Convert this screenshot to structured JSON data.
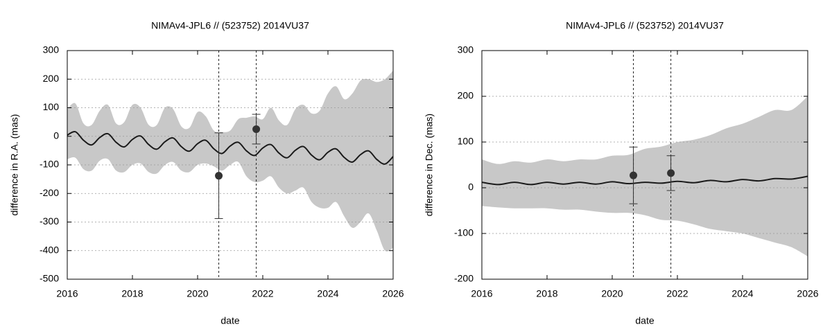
{
  "chart_data": [
    {
      "type": "line",
      "title": "NIMAv4-JPL6 // (523752) 2014VU37",
      "x_label": "date",
      "y_label": "difference in R.A. (mas)",
      "xlim": [
        2016,
        2026
      ],
      "xticks": [
        2016,
        2018,
        2020,
        2022,
        2024,
        2026
      ],
      "ylim": [
        -500,
        300
      ],
      "yticks": [
        -500,
        -400,
        -300,
        -200,
        -100,
        0,
        100,
        200,
        300
      ],
      "grid": true,
      "x": [
        2016,
        2016.25,
        2016.5,
        2016.75,
        2017,
        2017.25,
        2017.5,
        2017.75,
        2018,
        2018.25,
        2018.5,
        2018.75,
        2019,
        2019.25,
        2019.5,
        2019.75,
        2020,
        2020.25,
        2020.5,
        2020.75,
        2021,
        2021.25,
        2021.5,
        2021.75,
        2022,
        2022.25,
        2022.5,
        2022.75,
        2023,
        2023.25,
        2023.5,
        2023.75,
        2024,
        2024.25,
        2024.5,
        2024.75,
        2025,
        2025.25,
        2025.5,
        2025.75,
        2026
      ],
      "values": [
        4,
        16,
        -14,
        -30,
        -4,
        9,
        -21,
        -37,
        -11,
        1,
        -29,
        -45,
        -19,
        -6,
        -36,
        -52,
        -26,
        -14,
        -44,
        -60,
        -34,
        -21,
        -51,
        -67,
        -41,
        -29,
        -59,
        -75,
        -49,
        -36,
        -66,
        -82,
        -56,
        -44,
        -74,
        -90,
        -64,
        -51,
        -81,
        -97,
        -71
      ],
      "band_upper": [
        95,
        115,
        45,
        40,
        90,
        110,
        45,
        50,
        110,
        100,
        40,
        40,
        100,
        95,
        35,
        30,
        85,
        70,
        20,
        15,
        20,
        60,
        65,
        70,
        60,
        100,
        55,
        40,
        95,
        110,
        80,
        90,
        150,
        175,
        130,
        150,
        195,
        200,
        190,
        200,
        230
      ],
      "band_lower": [
        -80,
        -75,
        -115,
        -120,
        -85,
        -80,
        -120,
        -125,
        -100,
        -95,
        -125,
        -130,
        -100,
        -90,
        -120,
        -125,
        -100,
        -95,
        -105,
        -120,
        -100,
        -90,
        -140,
        -160,
        -155,
        -140,
        -180,
        -200,
        -190,
        -180,
        -230,
        -250,
        -250,
        -230,
        -280,
        -320,
        -300,
        -270,
        -330,
        -400,
        -390
      ],
      "band_color": "#c8c8c8",
      "line_color": "#1a1a1a",
      "point_color": "#333333",
      "points": {
        "x": [
          2020.65,
          2021.8
        ],
        "values": [
          -138,
          25
        ],
        "errors": [
          150,
          52
        ]
      },
      "vlines": [
        2020.65,
        2021.8
      ]
    },
    {
      "type": "line",
      "title": "NIMAv4-JPL6 // (523752) 2014VU37",
      "x_label": "date",
      "y_label": "difference in Dec. (mas)",
      "xlim": [
        2016,
        2026
      ],
      "xticks": [
        2016,
        2018,
        2020,
        2022,
        2024,
        2026
      ],
      "ylim": [
        -200,
        300
      ],
      "yticks": [
        -200,
        -100,
        0,
        100,
        200,
        300
      ],
      "grid": true,
      "x": [
        2016,
        2016.5,
        2017,
        2017.5,
        2018,
        2018.5,
        2019,
        2019.5,
        2020,
        2020.5,
        2021,
        2021.5,
        2022,
        2022.5,
        2023,
        2023.5,
        2024,
        2024.5,
        2025,
        2025.5,
        2026
      ],
      "values": [
        12,
        7,
        12,
        7,
        12,
        8,
        12,
        8,
        13,
        9,
        12,
        10,
        14,
        11,
        16,
        13,
        18,
        15,
        20,
        19,
        25
      ],
      "band_upper": [
        62,
        52,
        58,
        55,
        62,
        58,
        62,
        62,
        70,
        72,
        85,
        90,
        100,
        105,
        115,
        130,
        140,
        155,
        170,
        170,
        200
      ],
      "band_lower": [
        -40,
        -43,
        -45,
        -45,
        -45,
        -48,
        -48,
        -52,
        -55,
        -55,
        -60,
        -70,
        -72,
        -80,
        -90,
        -95,
        -100,
        -110,
        -120,
        -130,
        -150
      ],
      "band_color": "#c8c8c8",
      "line_color": "#1a1a1a",
      "point_color": "#333333",
      "points": {
        "x": [
          2020.65,
          2021.8
        ],
        "values": [
          27,
          32
        ],
        "errors": [
          62,
          38
        ]
      },
      "vlines": [
        2020.65,
        2021.8
      ]
    }
  ]
}
